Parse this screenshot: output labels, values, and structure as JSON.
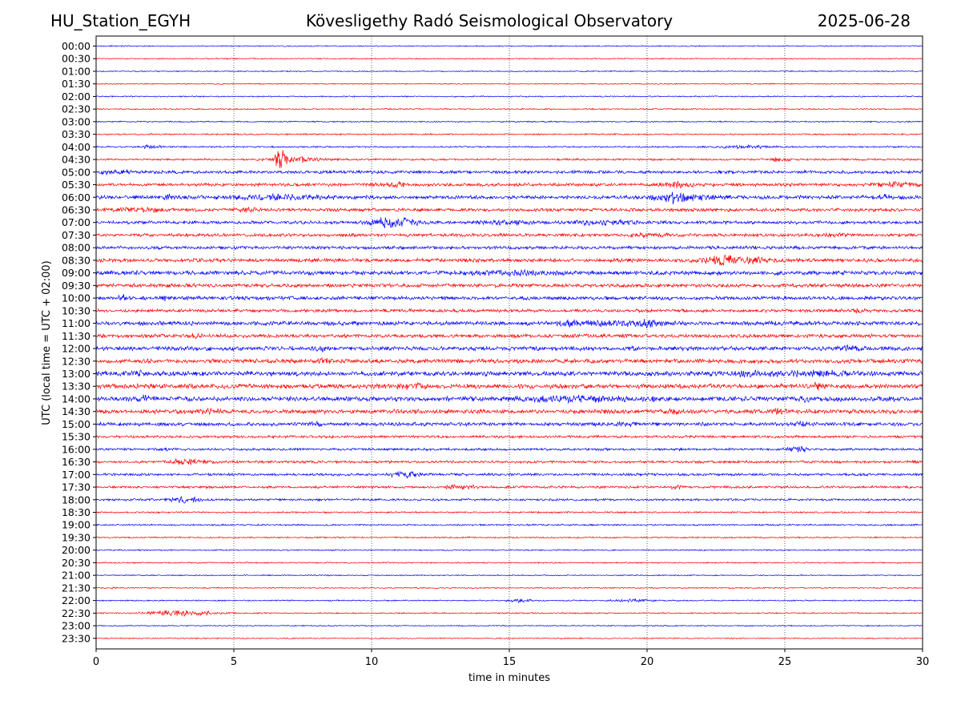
{
  "header": {
    "station": "HU_Station_EGYH",
    "observatory": "Kövesligethy Radó Seismological Observatory",
    "date": "2025-06-28"
  },
  "chart_data": {
    "type": "line",
    "title": "Kövesligethy Radó Seismological Observatory",
    "xlabel": "time in minutes",
    "ylabel": "UTC (local time = UTC + 02:00)",
    "xlim": [
      0,
      30
    ],
    "xticks": [
      0,
      5,
      10,
      15,
      20,
      25,
      30
    ],
    "grid": "vertical dotted lines at x = 5, 10, 15, 20, 25",
    "colors": {
      "even_rows": "#0000ff",
      "odd_rows": "#ff0000"
    },
    "rows": [
      {
        "label": "00:00",
        "amp": 0.7,
        "bursts": []
      },
      {
        "label": "00:30",
        "amp": 0.7,
        "bursts": []
      },
      {
        "label": "01:00",
        "amp": 0.7,
        "bursts": []
      },
      {
        "label": "01:30",
        "amp": 0.7,
        "bursts": []
      },
      {
        "label": "02:00",
        "amp": 0.8,
        "bursts": []
      },
      {
        "label": "02:30",
        "amp": 0.8,
        "bursts": []
      },
      {
        "label": "03:00",
        "amp": 0.8,
        "bursts": []
      },
      {
        "label": "03:30",
        "amp": 0.9,
        "bursts": []
      },
      {
        "label": "04:00",
        "amp": 1.0,
        "bursts": [
          {
            "t": 2.0,
            "w": 0.3,
            "a": 2
          },
          {
            "t": 23.5,
            "w": 1.0,
            "a": 1.5
          }
        ]
      },
      {
        "label": "04:30",
        "amp": 1.2,
        "bursts": [
          {
            "t": 6.7,
            "w": 0.2,
            "a": 12
          },
          {
            "t": 7.3,
            "w": 0.9,
            "a": 3
          },
          {
            "t": 24.8,
            "w": 0.3,
            "a": 2
          }
        ]
      },
      {
        "label": "05:00",
        "amp": 2.0,
        "bursts": [
          {
            "t": 0.8,
            "w": 1.0,
            "a": 1.5
          }
        ]
      },
      {
        "label": "05:30",
        "amp": 2.0,
        "bursts": [
          {
            "t": 10.8,
            "w": 0.7,
            "a": 2
          },
          {
            "t": 21.0,
            "w": 0.6,
            "a": 2.5
          },
          {
            "t": 29.0,
            "w": 0.8,
            "a": 2
          }
        ]
      },
      {
        "label": "06:00",
        "amp": 2.3,
        "bursts": [
          {
            "t": 2.6,
            "w": 0.3,
            "a": 2
          },
          {
            "t": 6.5,
            "w": 1.5,
            "a": 2.2
          },
          {
            "t": 20.8,
            "w": 0.5,
            "a": 4
          },
          {
            "t": 21.5,
            "w": 1.0,
            "a": 2.5
          },
          {
            "t": 28.8,
            "w": 0.6,
            "a": 2
          }
        ]
      },
      {
        "label": "06:30",
        "amp": 2.0,
        "bursts": [
          {
            "t": 1.5,
            "w": 1.0,
            "a": 2
          },
          {
            "t": 5.5,
            "w": 0.4,
            "a": 2.5
          }
        ]
      },
      {
        "label": "07:00",
        "amp": 2.0,
        "bursts": [
          {
            "t": 10.5,
            "w": 0.5,
            "a": 5
          },
          {
            "t": 11.3,
            "w": 0.5,
            "a": 4
          },
          {
            "t": 14.9,
            "w": 0.8,
            "a": 2.5
          },
          {
            "t": 18.5,
            "w": 1.2,
            "a": 2.5
          }
        ]
      },
      {
        "label": "07:30",
        "amp": 2.0,
        "bursts": [
          {
            "t": 20.0,
            "w": 0.5,
            "a": 1.5
          },
          {
            "t": 26.8,
            "w": 0.4,
            "a": 1.5
          }
        ]
      },
      {
        "label": "08:00",
        "amp": 2.0,
        "bursts": []
      },
      {
        "label": "08:30",
        "amp": 2.3,
        "bursts": [
          {
            "t": 22.6,
            "w": 0.5,
            "a": 5
          },
          {
            "t": 23.6,
            "w": 0.8,
            "a": 3
          }
        ]
      },
      {
        "label": "09:00",
        "amp": 2.6,
        "bursts": [
          {
            "t": 15.0,
            "w": 1.5,
            "a": 1.6
          }
        ]
      },
      {
        "label": "09:30",
        "amp": 2.3,
        "bursts": []
      },
      {
        "label": "10:00",
        "amp": 2.3,
        "bursts": [
          {
            "t": 1.0,
            "w": 0.2,
            "a": 2.5
          },
          {
            "t": 2.5,
            "w": 0.2,
            "a": 2
          }
        ]
      },
      {
        "label": "10:30",
        "amp": 2.0,
        "bursts": [
          {
            "t": 27.6,
            "w": 0.3,
            "a": 2
          }
        ]
      },
      {
        "label": "11:00",
        "amp": 2.6,
        "bursts": [
          {
            "t": 17.2,
            "w": 0.4,
            "a": 2.2
          },
          {
            "t": 18.8,
            "w": 1.0,
            "a": 2.2
          },
          {
            "t": 20.2,
            "w": 0.5,
            "a": 3
          }
        ]
      },
      {
        "label": "11:30",
        "amp": 2.3,
        "bursts": [
          {
            "t": 3.6,
            "w": 0.2,
            "a": 2
          }
        ]
      },
      {
        "label": "12:00",
        "amp": 2.6,
        "bursts": [
          {
            "t": 8.2,
            "w": 0.3,
            "a": 2
          },
          {
            "t": 27.4,
            "w": 0.4,
            "a": 1.8
          }
        ]
      },
      {
        "label": "12:30",
        "amp": 2.6,
        "bursts": [
          {
            "t": 8.3,
            "w": 0.2,
            "a": 2
          }
        ]
      },
      {
        "label": "13:00",
        "amp": 2.9,
        "bursts": [
          {
            "t": 1.5,
            "w": 0.3,
            "a": 2
          },
          {
            "t": 23.8,
            "w": 1.2,
            "a": 2
          },
          {
            "t": 26.3,
            "w": 1.0,
            "a": 2
          }
        ]
      },
      {
        "label": "13:30",
        "amp": 2.9,
        "bursts": [
          {
            "t": 11.5,
            "w": 0.5,
            "a": 2
          },
          {
            "t": 26.2,
            "w": 0.2,
            "a": 3
          }
        ]
      },
      {
        "label": "14:00",
        "amp": 3.0,
        "bursts": [
          {
            "t": 1.8,
            "w": 0.2,
            "a": 3
          },
          {
            "t": 17.2,
            "w": 2.2,
            "a": 2.2
          },
          {
            "t": 25.7,
            "w": 0.2,
            "a": 2
          }
        ]
      },
      {
        "label": "14:30",
        "amp": 2.6,
        "bursts": [
          {
            "t": 4.2,
            "w": 0.3,
            "a": 2
          },
          {
            "t": 21.0,
            "w": 0.3,
            "a": 2
          },
          {
            "t": 24.8,
            "w": 0.3,
            "a": 2
          }
        ]
      },
      {
        "label": "15:00",
        "amp": 2.3,
        "bursts": [
          {
            "t": 8.0,
            "w": 0.2,
            "a": 2
          },
          {
            "t": 19.3,
            "w": 0.3,
            "a": 2
          },
          {
            "t": 25.6,
            "w": 0.2,
            "a": 2
          }
        ]
      },
      {
        "label": "15:30",
        "amp": 1.6,
        "bursts": []
      },
      {
        "label": "16:00",
        "amp": 1.5,
        "bursts": [
          {
            "t": 2.4,
            "w": 0.2,
            "a": 2
          },
          {
            "t": 25.5,
            "w": 0.4,
            "a": 3
          }
        ]
      },
      {
        "label": "16:30",
        "amp": 1.6,
        "bursts": [
          {
            "t": 3.1,
            "w": 0.4,
            "a": 3
          },
          {
            "t": 3.8,
            "w": 0.5,
            "a": 2
          }
        ]
      },
      {
        "label": "17:00",
        "amp": 1.6,
        "bursts": [
          {
            "t": 11.2,
            "w": 0.5,
            "a": 3
          }
        ]
      },
      {
        "label": "17:30",
        "amp": 1.5,
        "bursts": [
          {
            "t": 13.2,
            "w": 0.5,
            "a": 2.5
          },
          {
            "t": 21.1,
            "w": 0.2,
            "a": 2
          }
        ]
      },
      {
        "label": "18:00",
        "amp": 1.4,
        "bursts": [
          {
            "t": 3.3,
            "w": 0.5,
            "a": 3
          }
        ]
      },
      {
        "label": "18:30",
        "amp": 1.0,
        "bursts": []
      },
      {
        "label": "19:00",
        "amp": 1.0,
        "bursts": []
      },
      {
        "label": "19:30",
        "amp": 0.9,
        "bursts": []
      },
      {
        "label": "20:00",
        "amp": 0.8,
        "bursts": []
      },
      {
        "label": "20:30",
        "amp": 0.8,
        "bursts": []
      },
      {
        "label": "21:00",
        "amp": 0.7,
        "bursts": []
      },
      {
        "label": "21:30",
        "amp": 0.7,
        "bursts": [
          {
            "t": 0.6,
            "w": 0.1,
            "a": 1.5
          }
        ]
      },
      {
        "label": "22:00",
        "amp": 0.8,
        "bursts": [
          {
            "t": 15.4,
            "w": 0.4,
            "a": 1.5
          },
          {
            "t": 19.5,
            "w": 0.8,
            "a": 1.3
          }
        ]
      },
      {
        "label": "22:30",
        "amp": 0.8,
        "bursts": [
          {
            "t": 2.5,
            "w": 0.8,
            "a": 3
          },
          {
            "t": 3.7,
            "w": 0.8,
            "a": 2
          }
        ]
      },
      {
        "label": "23:00",
        "amp": 0.7,
        "bursts": []
      },
      {
        "label": "23:30",
        "amp": 0.7,
        "bursts": []
      }
    ]
  }
}
